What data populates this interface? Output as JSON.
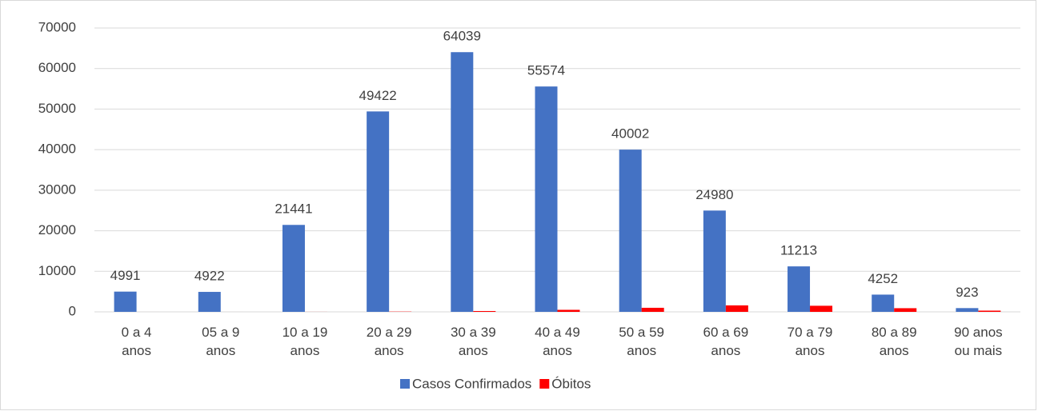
{
  "chart_data": {
    "type": "bar",
    "categories": [
      "0 a 4 anos",
      "05 a 9 anos",
      "10 a 19 anos",
      "20 a 29 anos",
      "30 a 39 anos",
      "40 a 49 anos",
      "50 a 59 anos",
      "60 a 69 anos",
      "70 a 79 anos",
      "80 a 89 anos",
      "90 anos ou mais"
    ],
    "series": [
      {
        "name": "Casos Confirmados",
        "color": "#4472c4",
        "values": [
          4991,
          4922,
          21441,
          49422,
          64039,
          55574,
          40002,
          24980,
          11213,
          4252,
          923
        ],
        "show_labels": true
      },
      {
        "name": "Óbitos",
        "color": "#ff0000",
        "values": [
          2,
          1,
          10,
          60,
          200,
          500,
          1000,
          1600,
          1500,
          900,
          300
        ],
        "show_labels": false
      }
    ],
    "ylim": [
      0,
      70000
    ],
    "yticks": [
      0,
      10000,
      20000,
      30000,
      40000,
      50000,
      60000,
      70000
    ],
    "grid": true,
    "legend": "bottom"
  }
}
